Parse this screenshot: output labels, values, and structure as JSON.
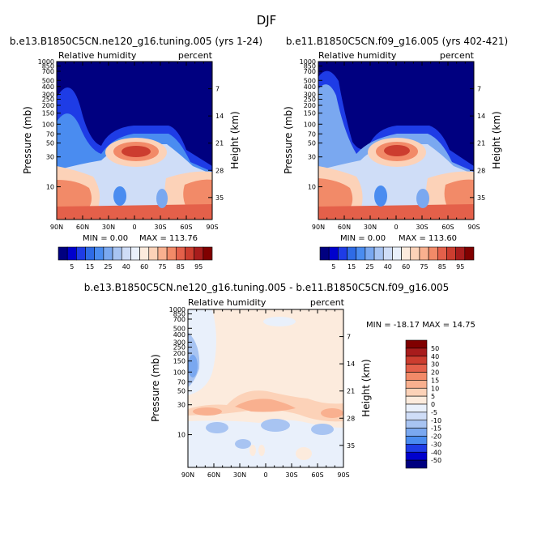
{
  "figure_title": "DJF",
  "chart_data": [
    {
      "type": "heatmap",
      "title": "b.e13.B1850C5CN.ne120_g16.tuning.005 (yrs 1-24)",
      "subtitle_left": "Relative humidity",
      "subtitle_right": "percent",
      "xlabel": "",
      "ylabel": "Pressure (mb)",
      "ylabel_right": "Height (km)",
      "x_ticks": [
        "90N",
        "60N",
        "30N",
        "0",
        "30S",
        "60S",
        "90S"
      ],
      "y_ticks": [
        "10",
        "30",
        "50",
        "70",
        "100",
        "150",
        "200",
        "250",
        "300",
        "400",
        "500",
        "700",
        "850",
        "1000"
      ],
      "y_right_ticks": [
        "35",
        "28",
        "21",
        "14",
        "7"
      ],
      "y_scale": "log",
      "ylim": [
        1000,
        3
      ],
      "min_text": "MIN =    0.00",
      "max_text": "MAX = 113.76",
      "colorbar": {
        "orientation": "horizontal",
        "labels": [
          "5",
          "15",
          "25",
          "40",
          "60",
          "75",
          "85",
          "95"
        ],
        "colors": [
          "#000080",
          "#0000CD",
          "#1E3CE6",
          "#2E6BE6",
          "#4A8CF0",
          "#7AA8F0",
          "#A8C4F2",
          "#CFDDF7",
          "#E9F0FB",
          "#FCEBDD",
          "#FCD2B8",
          "#F9B08F",
          "#F28A68",
          "#E4604A",
          "#CC3D2F",
          "#A81C1C",
          "#800000"
        ]
      }
    },
    {
      "type": "heatmap",
      "title": "b.e11.B1850C5CN.f09_g16.005 (yrs 402-421)",
      "subtitle_left": "Relative humidity",
      "subtitle_right": "percent",
      "xlabel": "",
      "ylabel": "Pressure (mb)",
      "ylabel_right": "Height (km)",
      "x_ticks": [
        "90N",
        "60N",
        "30N",
        "0",
        "30S",
        "60S",
        "90S"
      ],
      "y_ticks": [
        "10",
        "30",
        "50",
        "70",
        "100",
        "150",
        "200",
        "250",
        "300",
        "400",
        "500",
        "700",
        "850",
        "1000"
      ],
      "y_right_ticks": [
        "35",
        "28",
        "21",
        "14",
        "7"
      ],
      "y_scale": "log",
      "ylim": [
        1000,
        3
      ],
      "min_text": "MIN =    0.00",
      "max_text": "MAX = 113.60",
      "colorbar": {
        "orientation": "horizontal",
        "labels": [
          "5",
          "15",
          "25",
          "40",
          "60",
          "75",
          "85",
          "95"
        ],
        "colors": [
          "#000080",
          "#0000CD",
          "#1E3CE6",
          "#2E6BE6",
          "#4A8CF0",
          "#7AA8F0",
          "#A8C4F2",
          "#CFDDF7",
          "#E9F0FB",
          "#FCEBDD",
          "#FCD2B8",
          "#F9B08F",
          "#F28A68",
          "#E4604A",
          "#CC3D2F",
          "#A81C1C",
          "#800000"
        ]
      }
    },
    {
      "type": "heatmap",
      "title": "b.e13.B1850C5CN.ne120_g16.tuning.005 - b.e11.B1850C5CN.f09_g16.005",
      "subtitle_left": "Relative humidity",
      "subtitle_right": "percent",
      "xlabel": "",
      "ylabel": "Pressure (mb)",
      "ylabel_right": "Height (km)",
      "x_ticks": [
        "90N",
        "60N",
        "30N",
        "0",
        "30S",
        "60S",
        "90S"
      ],
      "y_ticks": [
        "10",
        "30",
        "50",
        "70",
        "100",
        "150",
        "200",
        "250",
        "300",
        "400",
        "500",
        "700",
        "850",
        "1000"
      ],
      "y_right_ticks": [
        "35",
        "28",
        "21",
        "14",
        "7"
      ],
      "y_scale": "log",
      "ylim": [
        1000,
        3
      ],
      "min_max_text": "MIN = -18.17   MAX =  14.75",
      "colorbar": {
        "orientation": "vertical",
        "labels": [
          "50",
          "40",
          "30",
          "20",
          "15",
          "10",
          "5",
          "0",
          "-5",
          "-10",
          "-15",
          "-20",
          "-30",
          "-40",
          "-50"
        ],
        "colors": [
          "#800000",
          "#A81C1C",
          "#CC3D2F",
          "#E4604A",
          "#F28A68",
          "#F9B08F",
          "#FCD2B8",
          "#FCEBDD",
          "#E9F0FB",
          "#CFDDF7",
          "#A8C4F2",
          "#7AA8F0",
          "#4A8CF0",
          "#1E3CE6",
          "#0000CD",
          "#000080"
        ]
      }
    }
  ]
}
